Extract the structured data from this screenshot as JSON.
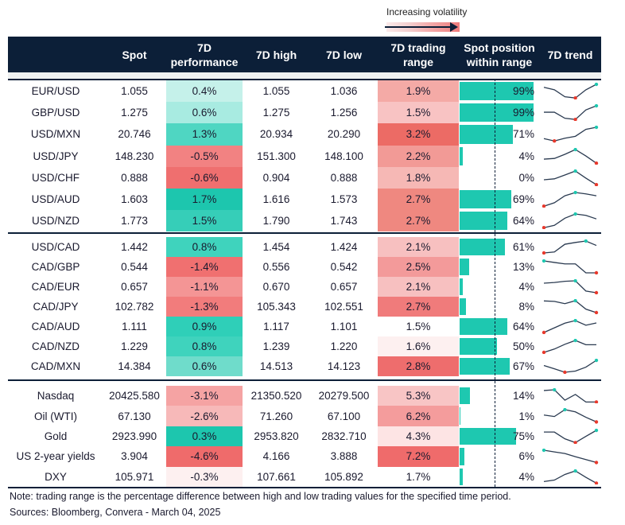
{
  "legend": {
    "label": "Increasing volatility"
  },
  "headers": {
    "spot": "Spot",
    "perf": "7D performance",
    "high": "7D high",
    "low": "7D low",
    "range": "7D trading range",
    "pos": "Spot position within range",
    "trend": "7D trend"
  },
  "colors": {
    "header": "#0c1f38",
    "bar": "#1ec8b0",
    "max_marker": "#1ec8b0",
    "min_marker": "#e8392c",
    "trend_line": "#2a3a50"
  },
  "chart_data": {
    "type": "table",
    "groups": [
      {
        "rows": [
          {
            "label": "EUR/USD",
            "spot": "1.055",
            "perf": "0.4%",
            "perf_color": "#c5f1ea",
            "high": "1.055",
            "low": "1.036",
            "range": "1.9%",
            "range_color": "#f4aaa6",
            "pos": 99,
            "pos_label": "99%",
            "trend": [
              0.78,
              0.6,
              0.09,
              0,
              0.6,
              1
            ]
          },
          {
            "label": "GBP/USD",
            "spot": "1.275",
            "perf": "0.6%",
            "perf_color": "#a8ebe1",
            "high": "1.275",
            "low": "1.256",
            "range": "1.5%",
            "range_color": "#f8c3c3",
            "pos": 99,
            "pos_label": "99%",
            "trend": [
              0.53,
              0.53,
              0.09,
              0,
              0.7,
              1
            ]
          },
          {
            "label": "USD/MXN",
            "spot": "20.746",
            "perf": "1.3%",
            "perf_color": "#4fd6c2",
            "high": "20.934",
            "low": "20.290",
            "range": "3.2%",
            "range_color": "#ec6b65",
            "pos": 71,
            "pos_label": "71%",
            "trend": [
              0.17,
              0,
              0.2,
              0.34,
              0.85,
              1
            ]
          },
          {
            "label": "USD/JPY",
            "spot": "148.230",
            "perf": "-0.5%",
            "perf_color": "#f28282",
            "high": "151.300",
            "low": "148.100",
            "range": "2.2%",
            "range_color": "#f29a96",
            "pos": 4,
            "pos_label": "4%",
            "trend": [
              0.3,
              0.35,
              0.65,
              1,
              0.53,
              0
            ]
          },
          {
            "label": "USD/CHF",
            "spot": "0.888",
            "perf": "-0.6%",
            "perf_color": "#ef6f6f",
            "high": "0.904",
            "low": "0.888",
            "range": "1.8%",
            "range_color": "#f6b8b5",
            "pos": 0,
            "pos_label": "0%",
            "trend": [
              0.36,
              0.43,
              0.71,
              1,
              0.48,
              0
            ]
          },
          {
            "label": "USD/AUD",
            "spot": "1.603",
            "perf": "1.7%",
            "perf_color": "#1dc6ae",
            "high": "1.616",
            "low": "1.573",
            "range": "2.7%",
            "range_color": "#ef8880",
            "pos": 69,
            "pos_label": "69%",
            "trend": [
              0,
              0.25,
              0.76,
              1,
              0.9,
              0.76
            ]
          },
          {
            "label": "USD/NZD",
            "spot": "1.773",
            "perf": "1.5%",
            "perf_color": "#36ceb8",
            "high": "1.790",
            "low": "1.743",
            "range": "2.7%",
            "range_color": "#ef8880",
            "pos": 64,
            "pos_label": "64%",
            "trend": [
              0,
              0.17,
              0.69,
              1,
              0.9,
              0.64
            ]
          }
        ]
      },
      {
        "rows": [
          {
            "label": "USD/CAD",
            "spot": "1.442",
            "perf": "0.8%",
            "perf_color": "#3fd3bd",
            "high": "1.454",
            "low": "1.424",
            "range": "2.1%",
            "range_color": "#f7c0c0",
            "pos": 61,
            "pos_label": "61%",
            "trend": [
              0,
              0.08,
              0.73,
              0.88,
              1,
              0.63
            ]
          },
          {
            "label": "CAD/GBP",
            "spot": "0.544",
            "perf": "-1.4%",
            "perf_color": "#f07070",
            "high": "0.556",
            "low": "0.542",
            "range": "2.5%",
            "range_color": "#f39a9a",
            "pos": 13,
            "pos_label": "13%",
            "trend": [
              1,
              0.87,
              0.75,
              0.75,
              0,
              0
            ]
          },
          {
            "label": "CAD/EUR",
            "spot": "0.657",
            "perf": "-1.1%",
            "perf_color": "#f49595",
            "high": "0.670",
            "low": "0.657",
            "range": "2.1%",
            "range_color": "#f7c0c0",
            "pos": 4,
            "pos_label": "4%",
            "trend": [
              0.8,
              0.86,
              0.96,
              1,
              0.14,
              0
            ]
          },
          {
            "label": "CAD/JPY",
            "spot": "102.782",
            "perf": "-1.3%",
            "perf_color": "#f27c7c",
            "high": "105.343",
            "low": "102.551",
            "range": "2.7%",
            "range_color": "#f07b7b",
            "pos": 8,
            "pos_label": "8%",
            "trend": [
              0.98,
              0.94,
              0.75,
              1,
              0.29,
              0
            ]
          },
          {
            "label": "CAD/AUD",
            "spot": "1.111",
            "perf": "0.9%",
            "perf_color": "#2fcfb8",
            "high": "1.117",
            "low": "1.101",
            "range": "1.5%",
            "range_color": "#ffffff",
            "pos": 64,
            "pos_label": "64%",
            "trend": [
              0,
              0.39,
              0.78,
              1,
              0.61,
              0.8
            ]
          },
          {
            "label": "CAD/NZD",
            "spot": "1.229",
            "perf": "0.8%",
            "perf_color": "#3fd3bd",
            "high": "1.239",
            "low": "1.220",
            "range": "1.6%",
            "range_color": "#fdf0f0",
            "pos": 50,
            "pos_label": "50%",
            "trend": [
              0,
              0.28,
              0.68,
              1,
              0.64,
              0.64
            ]
          },
          {
            "label": "CAD/MXN",
            "spot": "14.384",
            "perf": "0.6%",
            "perf_color": "#6fdccb",
            "high": "14.513",
            "low": "14.123",
            "range": "2.8%",
            "range_color": "#ee6d6d",
            "pos": 67,
            "pos_label": "67%",
            "trend": [
              0.57,
              0.29,
              0,
              0.1,
              0.43,
              1
            ]
          }
        ]
      },
      {
        "rows": [
          {
            "label": "Nasdaq",
            "spot": "20425.580",
            "perf": "-3.1%",
            "perf_color": "#f5a3a3",
            "high": "21350.520",
            "low": "20279.500",
            "range": "5.3%",
            "range_color": "#f8c5c5",
            "pos": 14,
            "pos_label": "14%",
            "trend": [
              0.94,
              1,
              0.15,
              0.62,
              0,
              0
            ]
          },
          {
            "label": "Oil (WTI)",
            "spot": "67.130",
            "perf": "-2.6%",
            "perf_color": "#f7b9b9",
            "high": "71.260",
            "low": "67.100",
            "range": "6.2%",
            "range_color": "#f49c9c",
            "pos": 1,
            "pos_label": "1%",
            "trend": [
              0.56,
              0.44,
              1,
              0.82,
              0.38,
              0
            ]
          },
          {
            "label": "Gold",
            "spot": "2923.990",
            "perf": "0.3%",
            "perf_color": "#1dc6ae",
            "high": "2953.820",
            "low": "2832.710",
            "range": "4.3%",
            "range_color": "#fde4e4",
            "pos": 75,
            "pos_label": "75%",
            "trend": [
              0.86,
              0.86,
              0.31,
              0,
              0.51,
              1
            ]
          },
          {
            "label": "US 2-year yields",
            "spot": "3.904",
            "perf": "-4.6%",
            "perf_color": "#ef6b6b",
            "high": "4.166",
            "low": "3.888",
            "range": "7.2%",
            "range_color": "#ef6b6b",
            "pos": 6,
            "pos_label": "6%",
            "trend": [
              1,
              0.86,
              0.73,
              0.47,
              0.24,
              0
            ]
          },
          {
            "label": "DXY",
            "spot": "105.971",
            "perf": "-0.3%",
            "perf_color": "#fdf0f0",
            "high": "107.661",
            "low": "105.892",
            "range": "1.7%",
            "range_color": "#ffffff",
            "pos": 4,
            "pos_label": "4%",
            "trend": [
              0.13,
              0.25,
              0.71,
              1,
              0.48,
              0
            ]
          }
        ]
      }
    ]
  },
  "footer": {
    "note": "Note: trading range is the percentage difference between high and low trading values for the specified time period.",
    "sources": "Sources: Bloomberg, Convera - March 04, 2025"
  }
}
